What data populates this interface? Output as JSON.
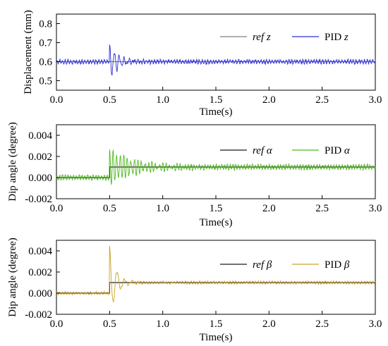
{
  "chart_data": [
    {
      "type": "line",
      "xlabel": "Time(s)",
      "ylabel": "Displacement (mm)",
      "xlim": [
        0.0,
        3.0
      ],
      "ylim": [
        0.45,
        0.85
      ],
      "x_ticks": [
        "0.0",
        "0.5",
        "1.0",
        "1.5",
        "2.0",
        "2.5",
        "3.0"
      ],
      "y_ticks": [
        "0.5",
        "0.6",
        "0.7",
        "0.8"
      ],
      "legend_position": "top-right",
      "series": [
        {
          "name": "ref z",
          "legend_italic": "ref z",
          "legend_plain": "",
          "color": "#7f7f7f",
          "kind": "ref",
          "base": 0.6,
          "step_at": null,
          "step_to": null
        },
        {
          "name": "PID z",
          "legend_italic": "z",
          "legend_plain": "PID ",
          "color": "#2b2bd6",
          "kind": "pid",
          "base": 0.6,
          "step_at": null,
          "step_to": null,
          "noise": 0.01,
          "peak": 0.085,
          "decay": 0.09,
          "freq": 22
        }
      ]
    },
    {
      "type": "line",
      "xlabel": "Time(s)",
      "ylabel": "Dip angle (degree)",
      "xlim": [
        0.0,
        3.0
      ],
      "ylim": [
        -0.002,
        0.005
      ],
      "x_ticks": [
        "0.0",
        "0.5",
        "1.0",
        "1.5",
        "2.0",
        "2.5",
        "3.0"
      ],
      "y_ticks": [
        "-0.002",
        "0.000",
        "0.002",
        "0.004"
      ],
      "legend_position": "top-right",
      "series": [
        {
          "name": "ref α",
          "legend_italic": "ref α",
          "legend_plain": "",
          "color": "#1a1a1a",
          "kind": "ref",
          "base": 0.0,
          "step_at": 0.5,
          "step_to": 0.001
        },
        {
          "name": "PID α",
          "legend_italic": "α",
          "legend_plain": "PID ",
          "color": "#4fb81e",
          "kind": "pid",
          "base": 0.0,
          "step_at": 0.5,
          "step_to": 0.001,
          "noise": 0.00022,
          "peak": 0.0016,
          "decay": 0.25,
          "freq": 30
        }
      ]
    },
    {
      "type": "line",
      "xlabel": "Time(s)",
      "ylabel": "Dip angle (degree)",
      "xlim": [
        0.0,
        3.0
      ],
      "ylim": [
        -0.002,
        0.005
      ],
      "x_ticks": [
        "0.0",
        "0.5",
        "1.0",
        "1.5",
        "2.0",
        "2.5",
        "3.0"
      ],
      "y_ticks": [
        "-0.002",
        "0.000",
        "0.002",
        "0.004"
      ],
      "legend_position": "top-right",
      "series": [
        {
          "name": "ref β",
          "legend_italic": "ref β",
          "legend_plain": "",
          "color": "#1a1a1a",
          "kind": "ref",
          "base": 0.0,
          "step_at": 0.5,
          "step_to": 0.001
        },
        {
          "name": "PID β",
          "legend_italic": "β",
          "legend_plain": "PID ",
          "color": "#c9a227",
          "kind": "pid",
          "base": 0.0,
          "step_at": 0.5,
          "step_to": 0.001,
          "noise": 0.00012,
          "peak": 0.0033,
          "decay": 0.06,
          "freq": 14
        }
      ]
    }
  ]
}
